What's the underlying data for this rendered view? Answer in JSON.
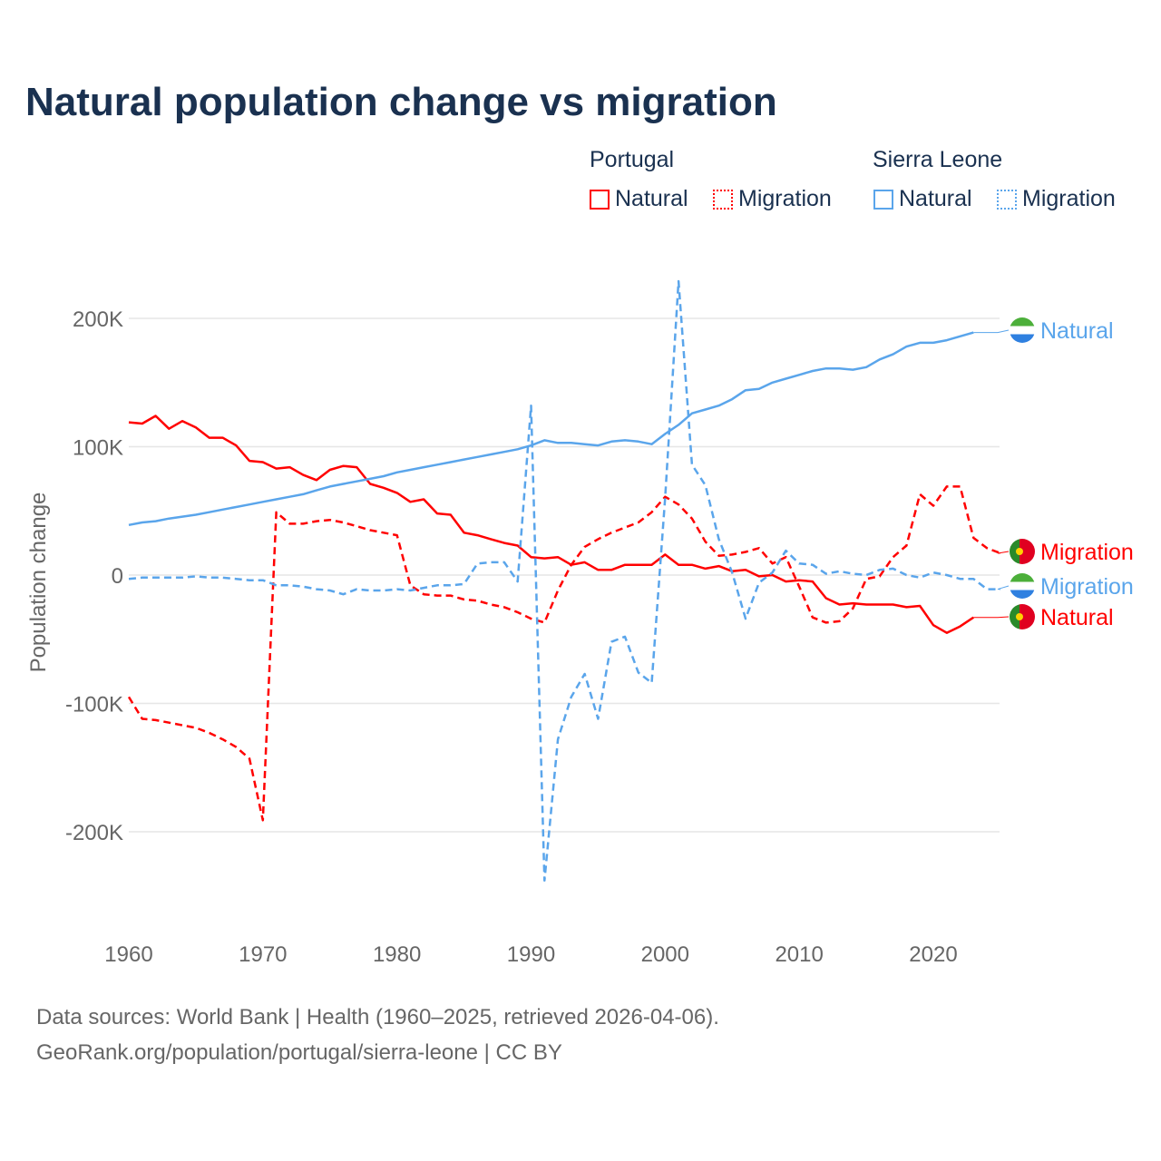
{
  "chart_data": {
    "type": "line",
    "title": "Natural population change vs migration",
    "ylabel": "Population change",
    "xlabel": "",
    "xlim": [
      1960,
      2025
    ],
    "ylim": [
      -260000,
      240000
    ],
    "x_ticks": [
      1960,
      1970,
      1980,
      1990,
      2000,
      2010,
      2020
    ],
    "x_tick_labels": [
      "1960",
      "1970",
      "1980",
      "1990",
      "2000",
      "2010",
      "2020"
    ],
    "y_ticks": [
      -200000,
      -100000,
      0,
      100000,
      200000
    ],
    "y_tick_labels": [
      "-200K",
      "-100K",
      "0",
      "100K",
      "200K"
    ],
    "grid": true,
    "legend": {
      "placement": "top-right",
      "groups": [
        {
          "name": "Portugal",
          "items": [
            "Natural",
            "Migration"
          ]
        },
        {
          "name": "Sierra Leone",
          "items": [
            "Natural",
            "Migration"
          ]
        }
      ]
    },
    "series": [
      {
        "name": "Portugal Natural",
        "country": "Portugal",
        "kind": "Natural",
        "label": "Natural",
        "color": "#ff0000",
        "dash": false,
        "start_year": 1960,
        "values": [
          119,
          118,
          124,
          114,
          120,
          115,
          107,
          107,
          101,
          89,
          88,
          83,
          84,
          78,
          74,
          82,
          85,
          84,
          71,
          68,
          64,
          57,
          59,
          48,
          47,
          33,
          31,
          28,
          25,
          23,
          14,
          13,
          14,
          8,
          10,
          4,
          4,
          8,
          8,
          8,
          16,
          8,
          8,
          5,
          7,
          3,
          4,
          -1,
          0,
          -5,
          -4,
          -5,
          -18,
          -23,
          -22,
          -23,
          -23,
          -23,
          -25,
          -24,
          -39,
          -45,
          -40,
          -33
        ]
      },
      {
        "name": "Portugal Migration",
        "country": "Portugal",
        "kind": "Migration",
        "label": "Migration",
        "color": "#ff0000",
        "dash": true,
        "start_year": 1960,
        "values": [
          -95,
          -112,
          -113,
          -115,
          -117,
          -119,
          -123,
          -128,
          -134,
          -143,
          -191,
          49,
          40,
          40,
          42,
          43,
          41,
          38,
          35,
          33,
          31,
          -8,
          -15,
          -16,
          -16,
          -19,
          -20,
          -23,
          -25,
          -29,
          -34,
          -37,
          -12,
          8,
          22,
          28,
          33,
          37,
          41,
          49,
          61,
          55,
          44,
          26,
          15,
          16,
          18,
          21,
          9,
          14,
          -9,
          -33,
          -37,
          -36,
          -26,
          -3,
          -1,
          14,
          23,
          63,
          54,
          69,
          69,
          29,
          21,
          17
        ]
      },
      {
        "name": "Sierra Leone Natural",
        "country": "Sierra Leone",
        "kind": "Natural",
        "label": "Natural",
        "color": "#5aa5eb",
        "dash": false,
        "start_year": 1960,
        "values": [
          39,
          41,
          42,
          44,
          45.5,
          47,
          49,
          51,
          53,
          55,
          57,
          59,
          61,
          63,
          66,
          69,
          71,
          73,
          75,
          77,
          80,
          82,
          84,
          86,
          88,
          90,
          92,
          94,
          96,
          98,
          101,
          105,
          103,
          103,
          102,
          101,
          104,
          105,
          104,
          102,
          110,
          117,
          126,
          129,
          132,
          137,
          144,
          145,
          150,
          153,
          156,
          159,
          161,
          161,
          160,
          162,
          168,
          172,
          178,
          181,
          181,
          183,
          186,
          189
        ]
      },
      {
        "name": "Sierra Leone Migration",
        "country": "Sierra Leone",
        "kind": "Migration",
        "label": "Migration",
        "color": "#5aa5eb",
        "dash": true,
        "start_year": 1960,
        "values": [
          -3,
          -2,
          -2,
          -2,
          -2,
          -1,
          -2,
          -2,
          -3,
          -4,
          -4,
          -8,
          -8,
          -9,
          -11,
          -12,
          -15,
          -11,
          -12,
          -12,
          -11,
          -12,
          -10,
          -8,
          -8,
          -7,
          9,
          10,
          10,
          -5,
          132,
          -238,
          -128,
          -95,
          -77,
          -112,
          -52,
          -48,
          -76,
          -84,
          60,
          229,
          86,
          70,
          28,
          2,
          -34,
          -6,
          2,
          19,
          9,
          8,
          1,
          3,
          1,
          0,
          4,
          5,
          0,
          -2,
          2,
          0,
          -3,
          -3,
          -11,
          -11
        ]
      }
    ],
    "value_unit": "thousands"
  },
  "legend_labels": {
    "portugal": "Portugal",
    "sierra_leone": "Sierra Leone",
    "natural": "Natural",
    "migration": "Migration"
  },
  "footer": {
    "line1": "Data sources: World Bank | Health (1960–2025, retrieved 2026-04-06).",
    "line2": "GeoRank.org/population/portugal/sierra-leone | CC BY"
  }
}
